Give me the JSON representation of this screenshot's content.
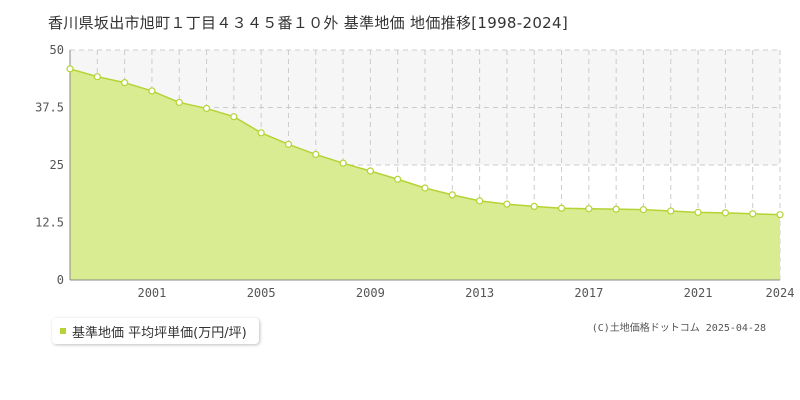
{
  "page": {
    "credit": "(C)土地価格ドットコム 2025-04-28"
  },
  "chart_data": {
    "type": "area",
    "title": "香川県坂出市旭町１丁目４３４５番１０外 基準地価 地価推移[1998-2024]",
    "xlabel": "",
    "ylabel": "",
    "x": [
      1998,
      1999,
      2000,
      2001,
      2002,
      2003,
      2004,
      2005,
      2006,
      2007,
      2008,
      2009,
      2010,
      2011,
      2012,
      2013,
      2014,
      2015,
      2016,
      2017,
      2018,
      2019,
      2020,
      2021,
      2022,
      2023,
      2024
    ],
    "series": [
      {
        "name": "基準地価 平均坪単価(万円/坪)",
        "color": "#b5d334",
        "values": [
          45.9,
          44.2,
          42.9,
          41.1,
          38.6,
          37.3,
          35.5,
          32.0,
          29.5,
          27.3,
          25.4,
          23.7,
          21.9,
          20.0,
          18.5,
          17.2,
          16.5,
          16.0,
          15.6,
          15.5,
          15.4,
          15.3,
          15.0,
          14.7,
          14.6,
          14.4,
          14.2
        ]
      }
    ],
    "xlim": [
      1998,
      2024
    ],
    "ylim": [
      0,
      50
    ],
    "x_ticks": [
      2001,
      2005,
      2009,
      2013,
      2017,
      2021,
      2024
    ],
    "y_ticks": [
      0,
      12.5,
      25,
      37.5,
      50
    ],
    "y_tick_labels": [
      "0",
      "12.5",
      "25",
      "37.5",
      "50"
    ],
    "grid": true,
    "legend_position": "bottom-left",
    "colors": {
      "fill": "#d9ec92",
      "line": "#b5d334",
      "marker": "#ffffff",
      "grid": "#cccccc",
      "shade": "#f6f6f6"
    }
  }
}
